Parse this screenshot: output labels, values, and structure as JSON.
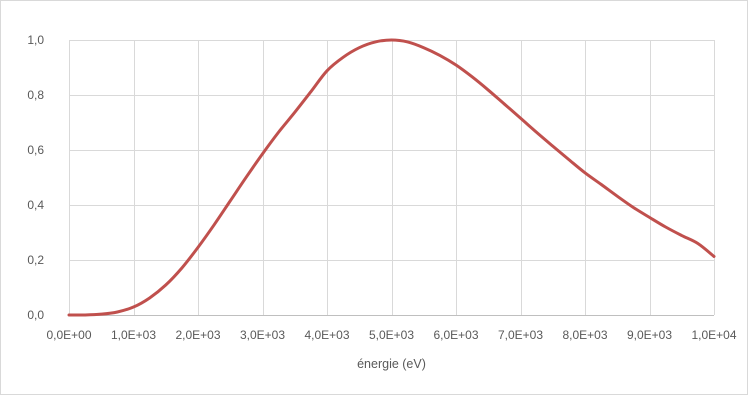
{
  "chart_data": {
    "type": "line",
    "title": "",
    "xlabel": "énergie (eV)",
    "ylabel": "",
    "xlim": [
      0,
      10000
    ],
    "ylim": [
      0,
      1.0
    ],
    "x_ticks": [
      0,
      1000,
      2000,
      3000,
      4000,
      5000,
      6000,
      7000,
      8000,
      9000,
      10000
    ],
    "x_tick_labels": [
      "0,0E+00",
      "1,0E+03",
      "2,0E+03",
      "3,0E+03",
      "4,0E+03",
      "5,0E+03",
      "6,0E+03",
      "7,0E+03",
      "8,0E+03",
      "9,0E+03",
      "1,0E+04"
    ],
    "y_ticks": [
      0,
      0.2,
      0.4,
      0.6,
      0.8,
      1.0
    ],
    "y_tick_labels": [
      "0,0",
      "0,2",
      "0,4",
      "0,6",
      "0,8",
      "1,0"
    ],
    "grid": "vertical and horizontal",
    "legend": "none",
    "series": [
      {
        "color": "#c0504d",
        "x": [
          0,
          250,
          500,
          750,
          1000,
          1250,
          1500,
          1750,
          2000,
          2250,
          2500,
          2750,
          3000,
          3250,
          3500,
          3750,
          4000,
          4250,
          4500,
          4750,
          5000,
          5250,
          5500,
          5750,
          6000,
          6250,
          6500,
          6750,
          7000,
          7250,
          7500,
          7750,
          8000,
          8250,
          8500,
          8750,
          9000,
          9250,
          9500,
          9750,
          10000
        ],
        "values": [
          0.0,
          0.0,
          0.003,
          0.011,
          0.029,
          0.062,
          0.109,
          0.171,
          0.246,
          0.328,
          0.415,
          0.502,
          0.586,
          0.665,
          0.737,
          0.812,
          0.888,
          0.937,
          0.972,
          0.993,
          1.0,
          0.993,
          0.972,
          0.944,
          0.909,
          0.866,
          0.818,
          0.767,
          0.716,
          0.664,
          0.614,
          0.565,
          0.517,
          0.475,
          0.432,
          0.391,
          0.355,
          0.32,
          0.289,
          0.26,
          0.213
        ]
      }
    ]
  }
}
